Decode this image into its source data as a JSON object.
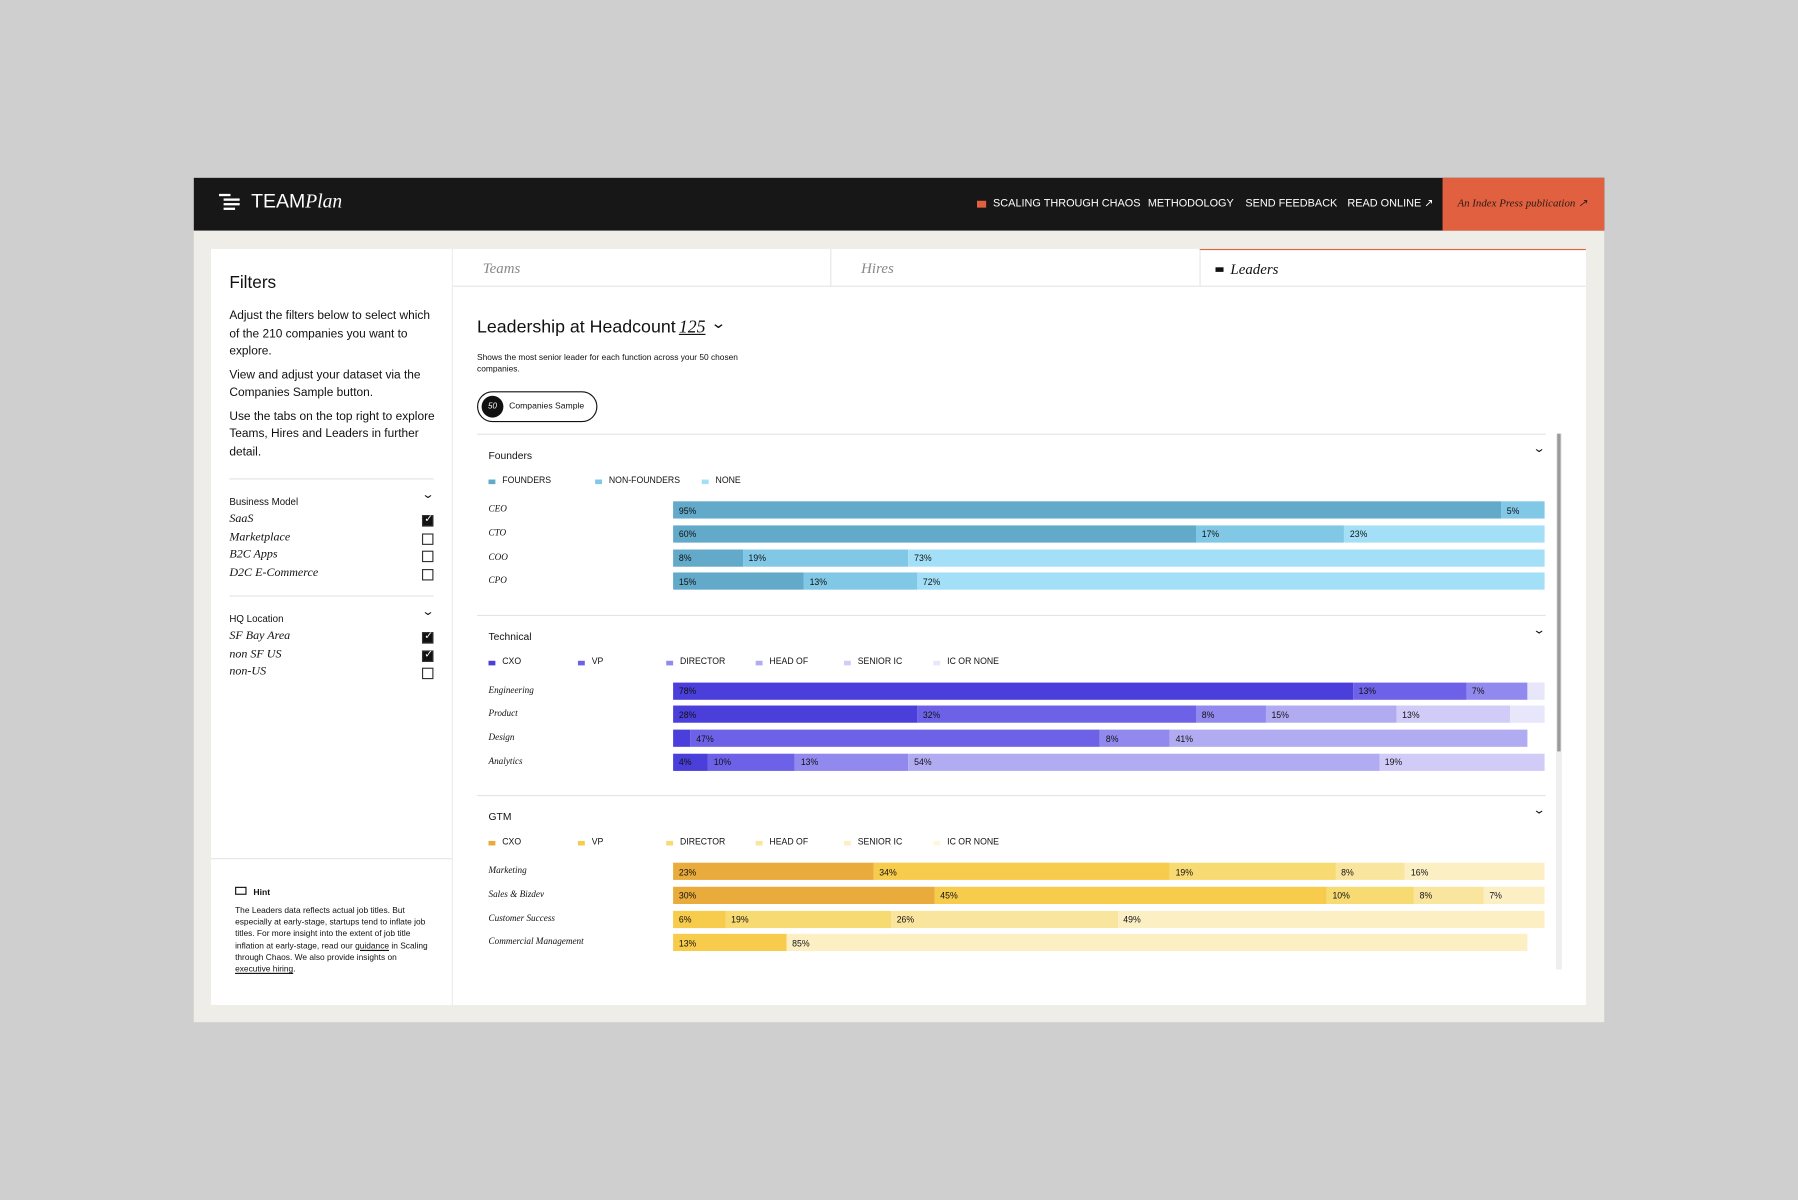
{
  "nav": {
    "logo_a": "TEAM",
    "logo_b": "Plan",
    "links": [
      "SCALING THROUGH CHAOS",
      "METHODOLOGY",
      "SEND FEEDBACK",
      "READ ONLINE ↗"
    ],
    "publication": "An Index Press publication ↗"
  },
  "filters": {
    "title": "Filters",
    "paragraphs": [
      "Adjust the filters below to select which of the 210 companies you want to explore.",
      "View and adjust your dataset via the Companies Sample button.",
      "Use the tabs on the top right to explore Teams, Hires and Leaders in further detail."
    ],
    "groups": [
      {
        "title": "Business Model",
        "options": [
          {
            "label": "SaaS",
            "checked": true
          },
          {
            "label": "Marketplace",
            "checked": false
          },
          {
            "label": "B2C Apps",
            "checked": false
          },
          {
            "label": "D2C E-Commerce",
            "checked": false
          }
        ]
      },
      {
        "title": "HQ Location",
        "options": [
          {
            "label": "SF Bay Area",
            "checked": true
          },
          {
            "label": "non SF US",
            "checked": true
          },
          {
            "label": "non-US",
            "checked": false
          }
        ]
      }
    ],
    "hint": {
      "title": "Hint",
      "parts": [
        {
          "text": "The Leaders data reflects actual job titles. But especially at early-stage, startups tend to inflate job titles. For more insight into the extent of job title inflation at early-stage, read our ",
          "link": false
        },
        {
          "text": "guidance",
          "link": true
        },
        {
          "text": " in Scaling through Chaos. We also provide insights on ",
          "link": false
        },
        {
          "text": "executive hiring",
          "link": true
        },
        {
          "text": ".",
          "link": false
        }
      ]
    }
  },
  "tabs": [
    {
      "label": "Teams",
      "active": false
    },
    {
      "label": "Hires",
      "active": false
    },
    {
      "label": "Leaders",
      "active": true
    }
  ],
  "leaders": {
    "title": "Leadership at Headcount",
    "headcount": "125",
    "subtitle": "Shows the most senior leader for each function across your 50 chosen companies.",
    "sample_button": {
      "count": "50",
      "label": "Companies Sample"
    },
    "xlim": [
      0,
      100
    ],
    "charts": [
      {
        "type": "bar",
        "title": "Founders",
        "categories": [
          "CEO",
          "CTO",
          "COO",
          "CPO"
        ],
        "series": [
          {
            "name": "FOUNDERS",
            "color": "#63a9c9",
            "values": [
              95,
              60,
              8,
              15
            ],
            "value_labels": [
              "95%",
              "60%",
              "8%",
              "15%"
            ]
          },
          {
            "name": "NON-FOUNDERS",
            "color": "#80c8e6",
            "values": [
              5,
              17,
              19,
              13
            ],
            "value_labels": [
              "5%",
              "17%",
              "19%",
              "13%"
            ]
          },
          {
            "name": "NONE",
            "color": "#a3e0f8",
            "values": [
              null,
              23,
              73,
              72
            ],
            "value_labels": [
              null,
              "23%",
              "73%",
              "72%"
            ]
          }
        ]
      },
      {
        "type": "bar",
        "title": "Technical",
        "categories": [
          "Engineering",
          "Product",
          "Design",
          "Analytics"
        ],
        "series": [
          {
            "name": "CXO",
            "color": "#4a3fda",
            "values": [
              78,
              28,
              2,
              4
            ],
            "value_labels": [
              "78%",
              "28%",
              null,
              "4%"
            ]
          },
          {
            "name": "VP",
            "color": "#6d61e8",
            "values": [
              13,
              32,
              47,
              10
            ],
            "value_labels": [
              "13%",
              "32%",
              "47%",
              "10%"
            ]
          },
          {
            "name": "DIRECTOR",
            "color": "#9189ee",
            "values": [
              7,
              8,
              8,
              13
            ],
            "value_labels": [
              "7%",
              "8%",
              "8%",
              "13%"
            ]
          },
          {
            "name": "HEAD OF",
            "color": "#b1abf2",
            "values": [
              null,
              15,
              41,
              54
            ],
            "value_labels": [
              null,
              "15%",
              "41%",
              "54%"
            ]
          },
          {
            "name": "SENIOR IC",
            "color": "#d0ccf7",
            "values": [
              null,
              13,
              null,
              19
            ],
            "value_labels": [
              null,
              "13%",
              null,
              "19%"
            ]
          },
          {
            "name": "IC OR NONE",
            "color": "#e8e6fb",
            "values": [
              2,
              4,
              null,
              null
            ],
            "value_labels": [
              null,
              null,
              null,
              null
            ]
          }
        ]
      },
      {
        "type": "bar",
        "title": "GTM",
        "categories": [
          "Marketing",
          "Sales & Bizdev",
          "Customer Success",
          "Commercial Management"
        ],
        "series": [
          {
            "name": "CXO",
            "color": "#e9ab3b",
            "values": [
              23,
              30,
              null,
              null
            ],
            "value_labels": [
              "23%",
              "30%",
              null,
              null
            ]
          },
          {
            "name": "VP",
            "color": "#f7cb4b",
            "values": [
              34,
              45,
              6,
              13
            ],
            "value_labels": [
              "34%",
              "45%",
              "6%",
              "13%"
            ]
          },
          {
            "name": "DIRECTOR",
            "color": "#f8da72",
            "values": [
              19,
              10,
              19,
              null
            ],
            "value_labels": [
              "19%",
              "10%",
              "19%",
              null
            ]
          },
          {
            "name": "HEAD OF",
            "color": "#fae59e",
            "values": [
              8,
              8,
              26,
              null
            ],
            "value_labels": [
              "8%",
              "8%",
              "26%",
              null
            ]
          },
          {
            "name": "SENIOR IC",
            "color": "#fcefc4",
            "values": [
              16,
              7,
              49,
              85
            ],
            "value_labels": [
              "16%",
              "7%",
              "49%",
              "85%"
            ]
          },
          {
            "name": "IC OR NONE",
            "color": "#fdf7df",
            "values": [
              null,
              null,
              null,
              null
            ],
            "value_labels": [
              null,
              null,
              null,
              null
            ]
          }
        ]
      }
    ]
  }
}
